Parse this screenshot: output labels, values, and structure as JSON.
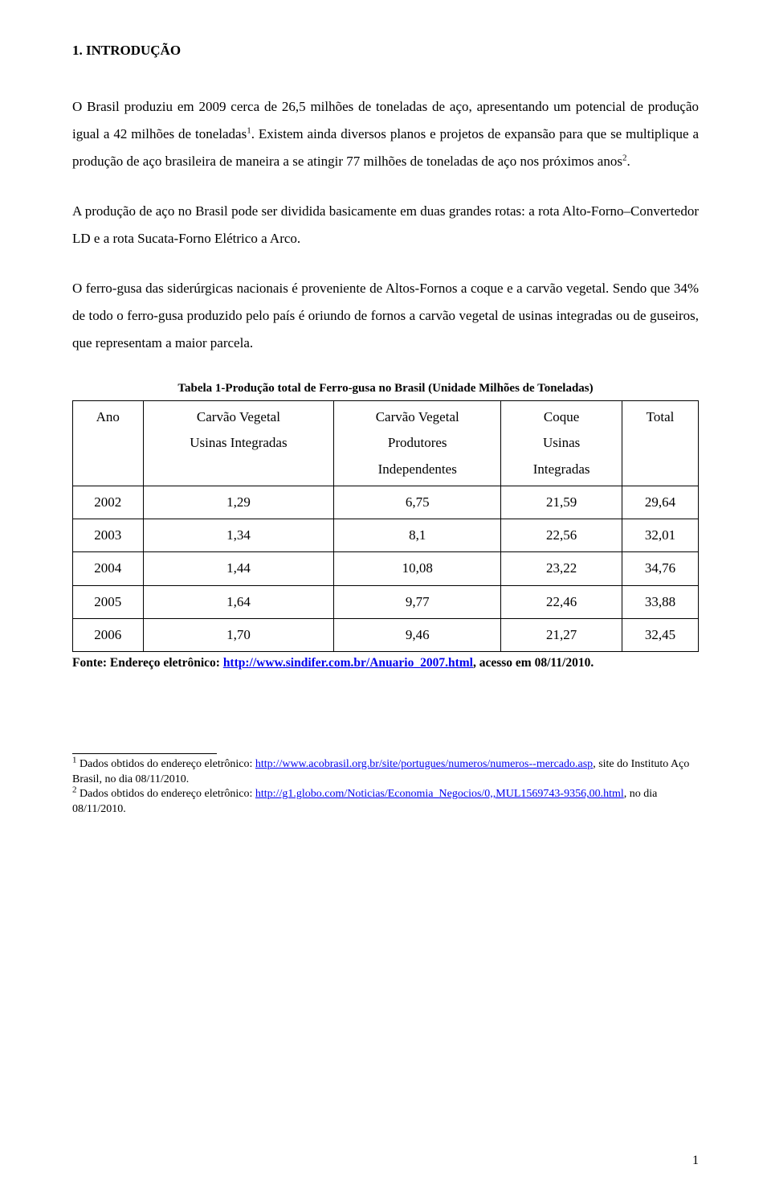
{
  "heading": "1. INTRODUÇÃO",
  "paragraphs": {
    "p1_a": "O Brasil produziu em 2009 cerca de 26,5 milhões de toneladas de aço, apresentando um potencial de produção igual a 42 milhões de toneladas",
    "p1_sup": "1",
    "p1_b": ". Existem ainda diversos planos e projetos de expansão para que se multiplique a produção de aço brasileira de maneira a se atingir 77 milhões de toneladas de aço nos próximos anos",
    "p1_sup2": "2",
    "p1_c": ".",
    "p2": "A produção de aço no Brasil pode ser dividida basicamente em duas grandes rotas: a rota Alto-Forno–Convertedor LD e a rota Sucata-Forno Elétrico a Arco.",
    "p3": "O ferro-gusa das siderúrgicas nacionais é proveniente de Altos-Fornos a coque e a carvão vegetal. Sendo que 34% de todo o ferro-gusa produzido pelo país é oriundo de fornos a carvão vegetal de usinas integradas ou de guseiros, que representam a maior parcela."
  },
  "table": {
    "caption": "Tabela 1-Produção total de Ferro-gusa no Brasil (Unidade Milhões de Toneladas)",
    "headers": {
      "c0": "Ano",
      "c1a": "Carvão Vegetal",
      "c1b": "Usinas Integradas",
      "c2a": "Carvão Vegetal",
      "c2b": "Produtores",
      "c2c": "Independentes",
      "c3a": "Coque",
      "c3b": "Usinas",
      "c3c": "Integradas",
      "c4": "Total"
    },
    "rows": [
      [
        "2002",
        "1,29",
        "6,75",
        "21,59",
        "29,64"
      ],
      [
        "2003",
        "1,34",
        "8,1",
        "22,56",
        "32,01"
      ],
      [
        "2004",
        "1,44",
        "10,08",
        "23,22",
        "34,76"
      ],
      [
        "2005",
        "1,64",
        "9,77",
        "22,46",
        "33,88"
      ],
      [
        "2006",
        "1,70",
        "9,46",
        "21,27",
        "32,45"
      ]
    ],
    "source_prefix": "Fonte: Endereço eletrônico: ",
    "source_url": "http://www.sindifer.com.br/Anuario_2007.html",
    "source_suffix": ", acesso em 08/11/2010."
  },
  "footnotes": {
    "f1_sup": "1",
    "f1_a": " Dados obtidos do endereço eletrônico: ",
    "f1_url": "http://www.acobrasil.org.br/site/portugues/numeros/numeros--mercado.asp",
    "f1_b": ", site do Instituto Aço Brasil, no dia 08/11/2010.",
    "f2_sup": "2",
    "f2_a": " Dados obtidos do endereço eletrônico: ",
    "f2_url": "http://g1.globo.com/Noticias/Economia_Negocios/0,,MUL1569743-9356,00.html",
    "f2_b": ", no dia 08/11/2010."
  },
  "page_number": "1"
}
